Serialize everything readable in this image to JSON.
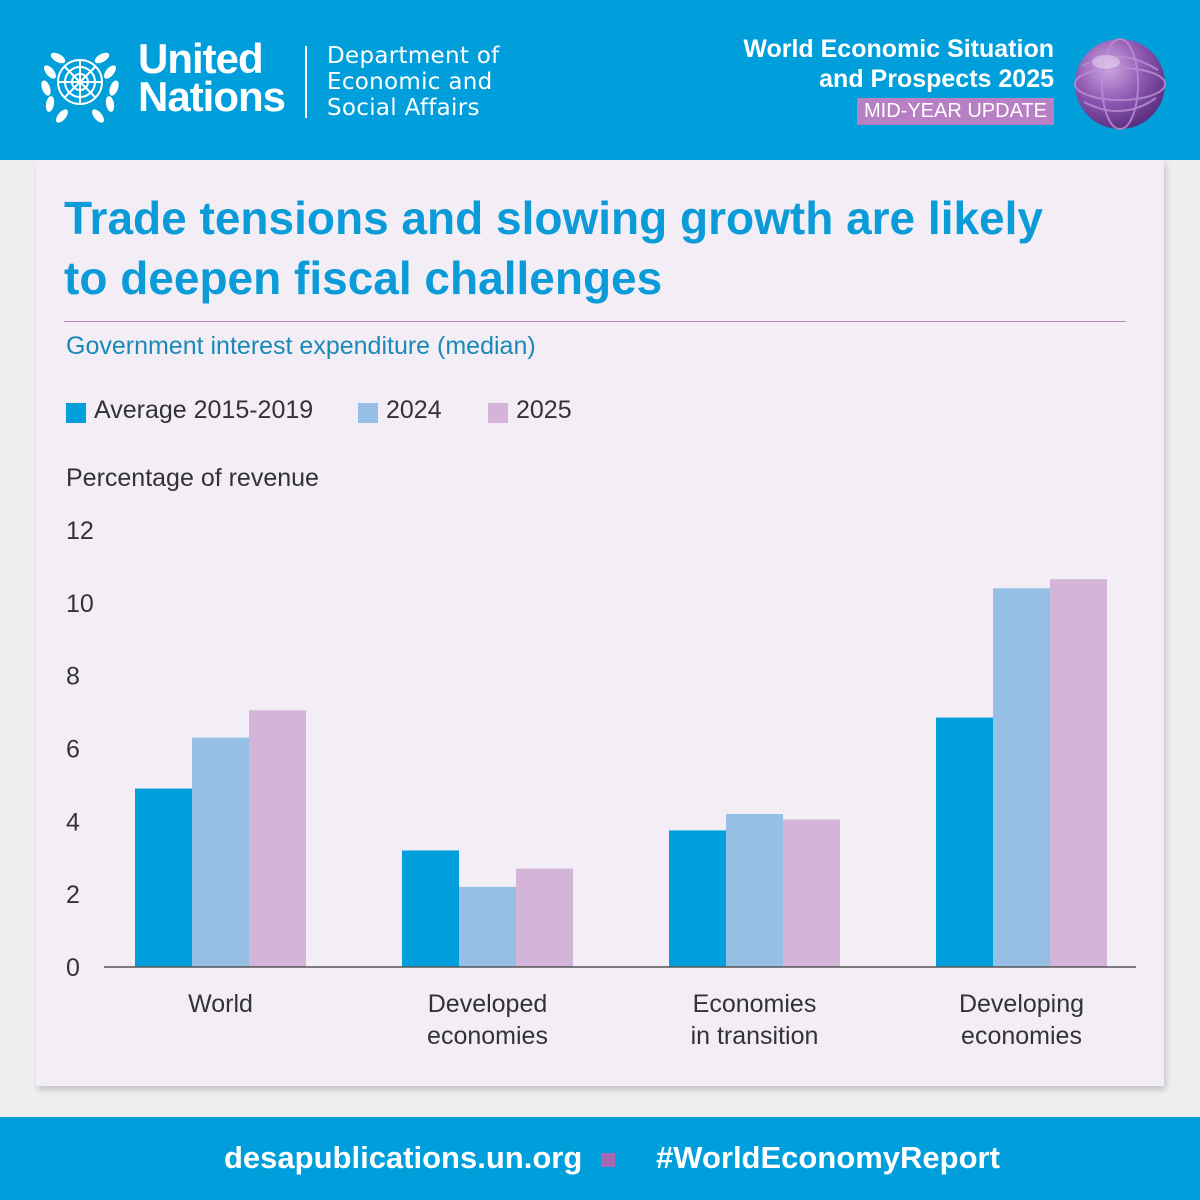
{
  "header": {
    "org_line1": "United",
    "org_line2": "Nations",
    "dept_line1": "Department of",
    "dept_line2": "Economic and",
    "dept_line3": "Social Affairs",
    "report_line1": "World Economic Situation",
    "report_line2": "and Prospects 2025",
    "badge": "MID-YEAR UPDATE"
  },
  "title_line1": "Trade tensions and slowing growth are likely",
  "title_line2": "to deepen fiscal challenges",
  "footer": {
    "url": "desapublications.un.org",
    "hashtag": "#WorldEconomyReport"
  },
  "colors": {
    "brand_blue": "#009edb",
    "title_blue": "#0a9bd8",
    "series_1": "#009edb",
    "series_2": "#96bfe6",
    "series_3": "#d4b5d9",
    "badge_purple": "#b77fc4"
  },
  "chart_data": {
    "type": "bar",
    "title": "Government interest expenditure (median)",
    "ylabel": "Percentage of revenue",
    "xlabel": "",
    "ylim": [
      0,
      12
    ],
    "yticks": [
      "0",
      "2",
      "4",
      "6",
      "8",
      "10",
      "12"
    ],
    "grid": false,
    "legend_position": "top-left",
    "categories": [
      [
        "World"
      ],
      [
        "Developed",
        "economies"
      ],
      [
        "Economies",
        "in transition"
      ],
      [
        "Developing",
        "economies"
      ]
    ],
    "series": [
      {
        "name": "Average 2015-2019",
        "color": "#009edb",
        "values": [
          4.9,
          3.2,
          3.75,
          6.85
        ]
      },
      {
        "name": "2024",
        "color": "#96bfe6",
        "values": [
          6.3,
          2.2,
          4.2,
          10.4
        ]
      },
      {
        "name": "2025",
        "color": "#d4b5d9",
        "values": [
          7.05,
          2.7,
          4.05,
          10.65
        ]
      }
    ]
  }
}
